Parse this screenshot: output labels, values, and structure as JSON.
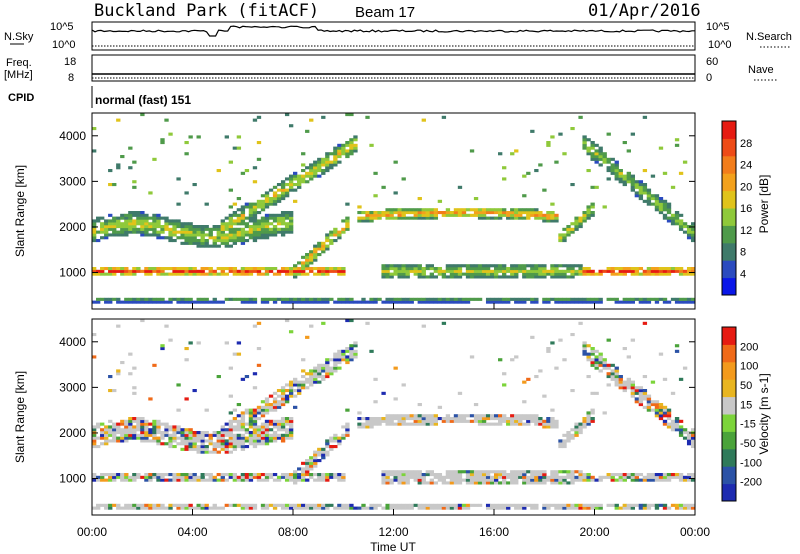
{
  "header": {
    "station": "Buckland Park (fitACF)",
    "beam": "Beam 17",
    "date": "01/Apr/2016"
  },
  "summary_panels": {
    "nsky": {
      "label": "N.Sky",
      "top_tick": "10^5",
      "bottom_tick": "10^0"
    },
    "nsearch": {
      "label": "N.Search",
      "top_tick": "10^5",
      "bottom_tick": "10^0"
    },
    "freq": {
      "label_1": "Freq.",
      "label_2": "[MHz]",
      "left_top": "18",
      "left_bottom": "8"
    },
    "nave": {
      "label": "Nave",
      "right_top": "60",
      "right_bottom": "0"
    },
    "cpid": {
      "label": "CPID",
      "value": "normal (fast) 151"
    }
  },
  "chart_data": [
    {
      "type": "heatmap",
      "name": "power",
      "ylabel": "Slant Range [km]",
      "yticks": [
        "1000",
        "2000",
        "3000",
        "4000"
      ],
      "ylim": [
        200,
        4500
      ],
      "colorbar": {
        "label": "Power [dB]",
        "ticks": [
          "4",
          "8",
          "12",
          "16",
          "20",
          "24",
          "28"
        ],
        "colors": [
          "#0a17e8",
          "#2b4bbf",
          "#3f7a6a",
          "#4f9a4a",
          "#8fc93a",
          "#e0c31a",
          "#f3a11c",
          "#f27d1b",
          "#ee4b17",
          "#e61b12"
        ]
      }
    },
    {
      "type": "heatmap",
      "name": "velocity",
      "ylabel": "Slant Range [km]",
      "yticks": [
        "1000",
        "2000",
        "3000",
        "4000"
      ],
      "ylim": [
        200,
        4500
      ],
      "xlabel": "Time UT",
      "xticks": [
        "00:00",
        "04:00",
        "08:00",
        "12:00",
        "16:00",
        "20:00",
        "00:00"
      ],
      "colorbar": {
        "label": "Velocity [m s-1]",
        "ticks": [
          "200",
          "100",
          "50",
          "15",
          "-15",
          "-50",
          "-100",
          "-200"
        ],
        "colors": [
          "#1d2bb0",
          "#2b52a6",
          "#2f7a5a",
          "#4aa33a",
          "#7cd43a",
          "#c8c8c8",
          "#e8b520",
          "#f39a1c",
          "#f06a18",
          "#e61b12"
        ]
      }
    }
  ]
}
